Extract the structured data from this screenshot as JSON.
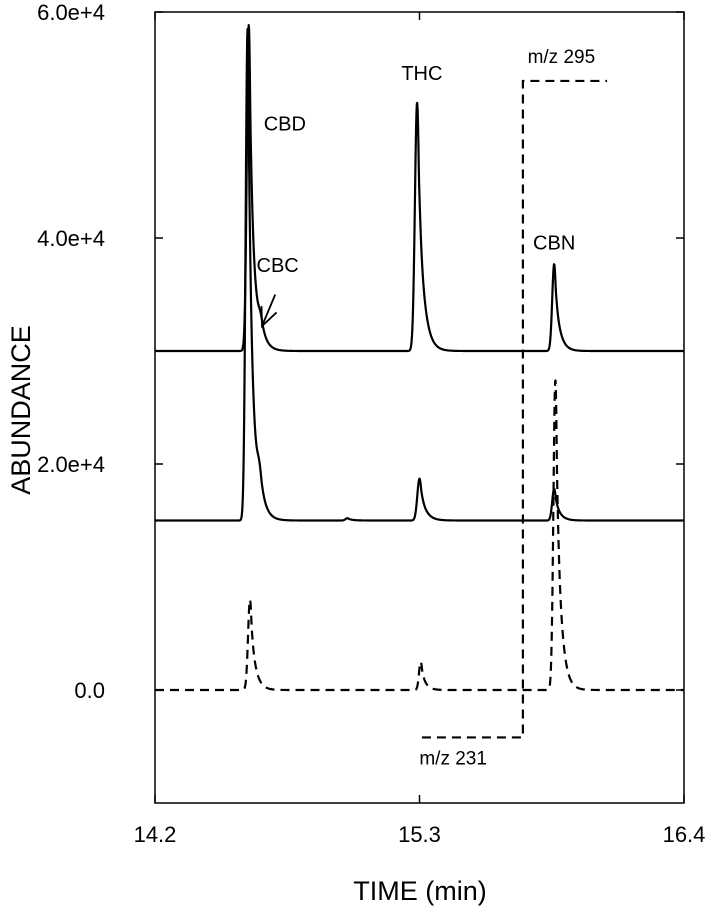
{
  "chart_data": {
    "type": "line",
    "xlabel": "TIME (min)",
    "ylabel": "ABUNDANCE",
    "xlim": [
      14.2,
      16.4
    ],
    "ylim": [
      -10000,
      60000
    ],
    "x_ticks": [
      {
        "value": 14.2,
        "label": "14.2"
      },
      {
        "value": 15.3,
        "label": "15.3"
      },
      {
        "value": 16.4,
        "label": "16.4"
      }
    ],
    "y_ticks": [
      {
        "value": 0,
        "label": "0.0"
      },
      {
        "value": 20000,
        "label": "2.0e+4"
      },
      {
        "value": 40000,
        "label": "4.0e+4"
      },
      {
        "value": 60000,
        "label": "6.0e+4"
      }
    ],
    "series": [
      {
        "style": "solid",
        "baseline": 30000,
        "peaks": [
          {
            "x": 14.59,
            "height": 28500,
            "width": 0.008
          },
          {
            "x": 14.585,
            "height": 400,
            "width": 0.01
          },
          {
            "x": 14.64,
            "height": 1400,
            "width": 0.01
          },
          {
            "x": 15.29,
            "height": 22000,
            "width": 0.009
          },
          {
            "x": 15.86,
            "height": 7700,
            "width": 0.008
          }
        ]
      },
      {
        "style": "solid",
        "baseline": 15000,
        "peaks": [
          {
            "x": 14.585,
            "height": 43500,
            "width": 0.008
          },
          {
            "x": 14.635,
            "height": 2200,
            "width": 0.01
          },
          {
            "x": 15.0,
            "height": 200,
            "width": 0.008
          },
          {
            "x": 15.3,
            "height": 3700,
            "width": 0.009
          },
          {
            "x": 15.86,
            "height": 2800,
            "width": 0.008
          }
        ]
      },
      {
        "style": "dashed",
        "baseline": 0,
        "peaks": [
          {
            "x": 14.595,
            "height": 8000,
            "width": 0.008
          },
          {
            "x": 15.305,
            "height": 2500,
            "width": 0.007
          },
          {
            "x": 15.865,
            "height": 27500,
            "width": 0.008
          }
        ]
      }
    ],
    "ion_switch_line": {
      "style": "dashed",
      "points": [
        [
          15.31,
          -4200
        ],
        [
          15.73,
          -4200
        ],
        [
          15.73,
          53900
        ],
        [
          16.08,
          53900
        ]
      ]
    },
    "annotations": [
      {
        "text": "CBD",
        "x": 14.74,
        "y": 49500
      },
      {
        "text": "CBC",
        "x": 14.71,
        "y": 37000
      },
      {
        "text": "THC",
        "x": 15.31,
        "y": 54000
      },
      {
        "text": "CBN",
        "x": 15.86,
        "y": 39000
      },
      {
        "text": "m/z 295",
        "x": 15.89,
        "y": 55500
      },
      {
        "text": "m/z 231",
        "x": 15.44,
        "y": -6600
      }
    ],
    "arrow": {
      "from": [
        14.7,
        35000
      ],
      "to": [
        14.645,
        32200
      ]
    }
  }
}
